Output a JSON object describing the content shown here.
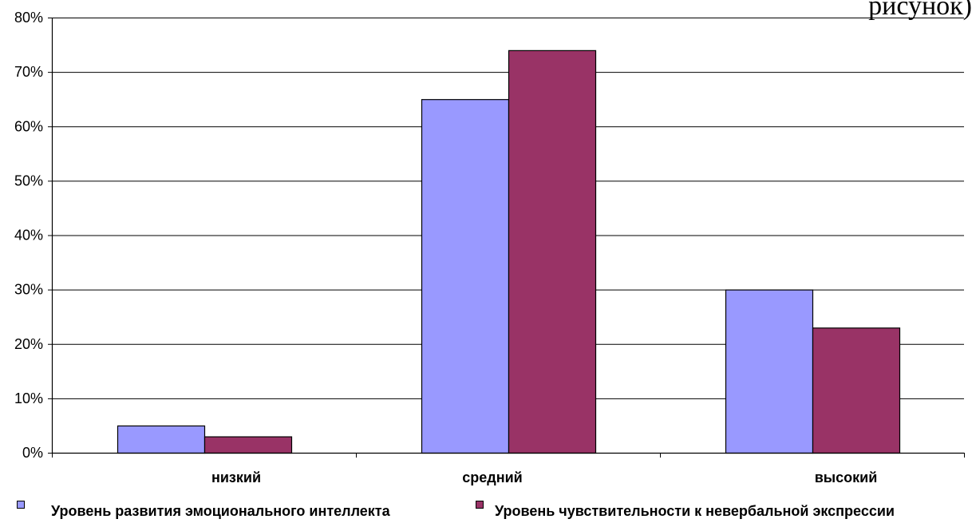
{
  "caption_fragment": "рисунок)",
  "chart_data": {
    "type": "bar",
    "title": "",
    "xlabel": "",
    "ylabel": "",
    "categories": [
      "низкий",
      "средний",
      "высокий"
    ],
    "series": [
      {
        "name": "Уровень развития эмоционального интеллекта",
        "values": [
          5,
          65,
          30
        ],
        "color": "#9999ff"
      },
      {
        "name": "Уровень чувствительности к невербальной экспрессии",
        "values": [
          3,
          74,
          23
        ],
        "color": "#993366"
      }
    ],
    "ylim": [
      0,
      80
    ],
    "yticks": [
      0,
      10,
      20,
      30,
      40,
      50,
      60,
      70,
      80
    ],
    "ytick_labels": [
      "0%",
      "10%",
      "20%",
      "30%",
      "40%",
      "50%",
      "60%",
      "70%",
      "80%"
    ],
    "value_unit": "%",
    "grid": true,
    "legend_position": "bottom"
  }
}
